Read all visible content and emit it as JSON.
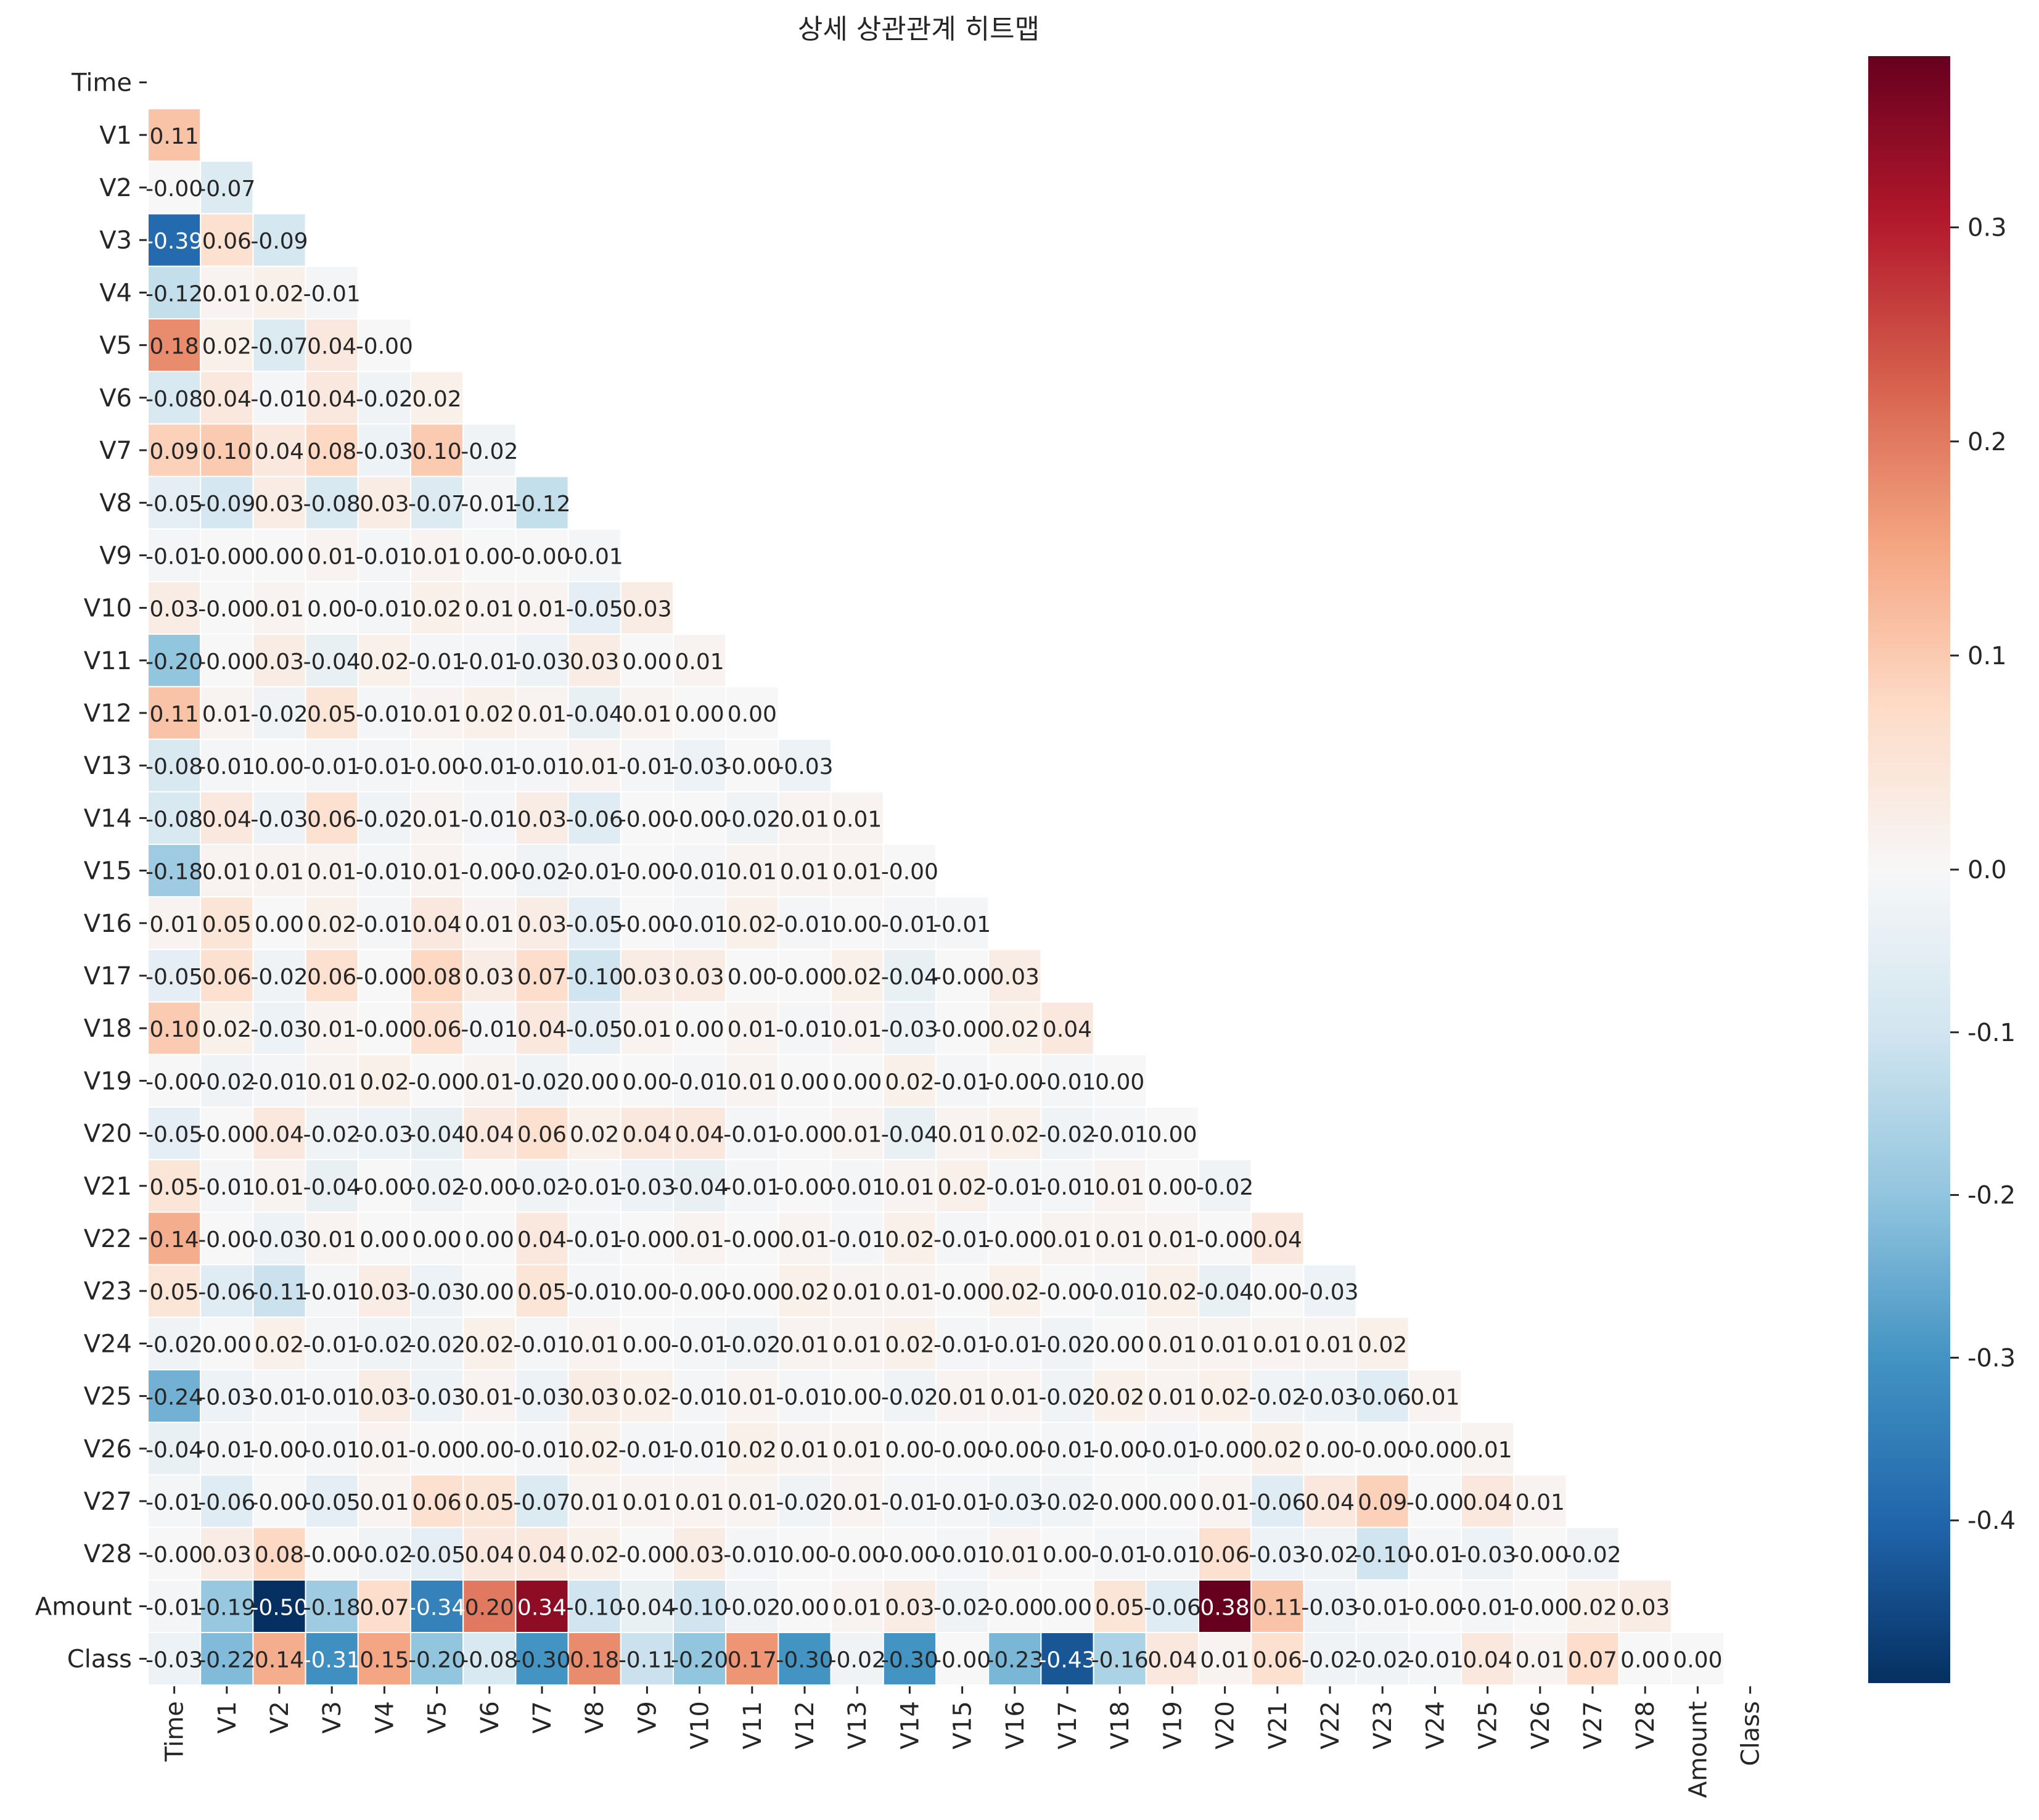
{
  "chart_data": {
    "type": "heatmap",
    "title": "상세 상관관계 히트맵",
    "xlabel": "",
    "ylabel": "",
    "labels": [
      "Time",
      "V1",
      "V2",
      "V3",
      "V4",
      "V5",
      "V6",
      "V7",
      "V8",
      "V9",
      "V10",
      "V11",
      "V12",
      "V13",
      "V14",
      "V15",
      "V16",
      "V17",
      "V18",
      "V19",
      "V20",
      "V21",
      "V22",
      "V23",
      "V24",
      "V25",
      "V26",
      "V27",
      "V28",
      "Amount",
      "Class"
    ],
    "mask": "upper-triangle-and-diagonal",
    "annotation_format": "0.00",
    "matrix_lower": [
      [],
      [
        0.11
      ],
      [
        -0.0,
        -0.07
      ],
      [
        -0.39,
        0.06,
        -0.09
      ],
      [
        -0.12,
        0.01,
        0.02,
        -0.01
      ],
      [
        0.18,
        0.02,
        -0.07,
        0.04,
        -0.0
      ],
      [
        -0.08,
        0.04,
        -0.01,
        0.04,
        -0.02,
        0.02
      ],
      [
        0.09,
        0.1,
        0.04,
        0.08,
        -0.03,
        0.1,
        -0.02
      ],
      [
        -0.05,
        -0.09,
        0.03,
        -0.08,
        0.03,
        -0.07,
        -0.01,
        -0.12
      ],
      [
        -0.01,
        -0.0,
        0.0,
        0.01,
        -0.01,
        0.01,
        0.0,
        -0.0,
        -0.01
      ],
      [
        0.03,
        -0.0,
        0.01,
        0.0,
        -0.01,
        0.02,
        0.01,
        0.01,
        -0.05,
        0.03
      ],
      [
        -0.2,
        -0.0,
        0.03,
        -0.04,
        0.02,
        -0.01,
        -0.01,
        -0.03,
        0.03,
        0.0,
        0.01
      ],
      [
        0.11,
        0.01,
        -0.02,
        0.05,
        -0.01,
        0.01,
        0.02,
        0.01,
        -0.04,
        0.01,
        0.0,
        0.0
      ],
      [
        -0.08,
        -0.01,
        0.0,
        -0.01,
        -0.01,
        -0.0,
        -0.01,
        -0.01,
        0.01,
        -0.01,
        -0.03,
        -0.0,
        -0.03
      ],
      [
        -0.08,
        0.04,
        -0.03,
        0.06,
        -0.02,
        0.01,
        -0.01,
        0.03,
        -0.06,
        -0.0,
        -0.0,
        -0.02,
        0.01,
        0.01
      ],
      [
        -0.18,
        0.01,
        0.01,
        0.01,
        -0.01,
        0.01,
        -0.0,
        -0.02,
        -0.01,
        -0.0,
        -0.01,
        0.01,
        0.01,
        0.01,
        -0.0
      ],
      [
        0.01,
        0.05,
        0.0,
        0.02,
        -0.01,
        0.04,
        0.01,
        0.03,
        -0.05,
        -0.0,
        -0.01,
        0.02,
        -0.01,
        0.0,
        -0.01,
        -0.01
      ],
      [
        -0.05,
        0.06,
        -0.02,
        0.06,
        -0.0,
        0.08,
        0.03,
        0.07,
        -0.1,
        0.03,
        0.03,
        0.0,
        -0.0,
        0.02,
        -0.04,
        -0.0,
        0.03
      ],
      [
        0.1,
        0.02,
        -0.03,
        0.01,
        -0.0,
        0.06,
        -0.01,
        0.04,
        -0.05,
        0.01,
        0.0,
        0.01,
        -0.01,
        0.01,
        -0.03,
        -0.0,
        0.02,
        0.04
      ],
      [
        -0.0,
        -0.02,
        -0.01,
        0.01,
        0.02,
        -0.0,
        0.01,
        -0.02,
        0.0,
        0.0,
        -0.01,
        0.01,
        0.0,
        0.0,
        0.02,
        -0.01,
        -0.0,
        -0.01,
        0.0
      ],
      [
        -0.05,
        -0.0,
        0.04,
        -0.02,
        -0.03,
        -0.04,
        0.04,
        0.06,
        0.02,
        0.04,
        0.04,
        -0.01,
        -0.0,
        0.01,
        -0.04,
        0.01,
        0.02,
        -0.02,
        -0.01,
        0.0
      ],
      [
        0.05,
        -0.01,
        0.01,
        -0.04,
        -0.0,
        -0.02,
        -0.0,
        -0.02,
        -0.01,
        -0.03,
        -0.04,
        -0.01,
        -0.0,
        -0.01,
        0.01,
        0.02,
        -0.01,
        -0.01,
        0.01,
        0.0,
        -0.02
      ],
      [
        0.14,
        -0.0,
        -0.03,
        0.01,
        0.0,
        0.0,
        0.0,
        0.04,
        -0.01,
        -0.0,
        0.01,
        -0.0,
        0.01,
        -0.01,
        0.02,
        -0.01,
        -0.0,
        0.01,
        0.01,
        0.01,
        -0.0,
        0.04
      ],
      [
        0.05,
        -0.06,
        -0.11,
        -0.01,
        0.03,
        -0.03,
        0.0,
        0.05,
        -0.01,
        0.0,
        -0.0,
        -0.0,
        0.02,
        0.01,
        0.01,
        -0.0,
        0.02,
        -0.0,
        -0.01,
        0.02,
        -0.04,
        0.0,
        -0.03
      ],
      [
        -0.02,
        0.0,
        0.02,
        -0.01,
        -0.02,
        -0.02,
        0.02,
        -0.01,
        0.01,
        0.0,
        -0.01,
        -0.02,
        0.01,
        0.01,
        0.02,
        -0.01,
        -0.01,
        -0.02,
        0.0,
        0.01,
        0.01,
        0.01,
        0.01,
        0.02
      ],
      [
        -0.24,
        -0.03,
        -0.01,
        -0.01,
        0.03,
        -0.03,
        0.01,
        -0.03,
        0.03,
        0.02,
        -0.01,
        0.01,
        -0.01,
        0.0,
        -0.02,
        0.01,
        0.01,
        -0.02,
        0.02,
        0.01,
        0.02,
        -0.02,
        -0.03,
        -0.06,
        0.01
      ],
      [
        -0.04,
        -0.01,
        -0.0,
        -0.01,
        0.01,
        -0.0,
        0.0,
        -0.01,
        0.02,
        -0.01,
        -0.01,
        0.02,
        0.01,
        0.01,
        0.0,
        -0.0,
        -0.0,
        -0.01,
        -0.0,
        -0.01,
        -0.0,
        0.02,
        0.0,
        -0.0,
        -0.0,
        0.01
      ],
      [
        -0.01,
        -0.06,
        -0.0,
        -0.05,
        0.01,
        0.06,
        0.05,
        -0.07,
        0.01,
        0.01,
        0.01,
        0.01,
        -0.02,
        0.01,
        -0.01,
        -0.01,
        -0.03,
        -0.02,
        -0.0,
        0.0,
        0.01,
        -0.06,
        0.04,
        0.09,
        -0.0,
        0.04,
        0.01
      ],
      [
        -0.0,
        0.03,
        0.08,
        -0.0,
        -0.02,
        -0.05,
        0.04,
        0.04,
        0.02,
        -0.0,
        0.03,
        -0.01,
        0.0,
        -0.0,
        -0.0,
        -0.01,
        0.01,
        0.0,
        -0.01,
        -0.01,
        0.06,
        -0.03,
        -0.02,
        -0.1,
        -0.01,
        -0.03,
        -0.0,
        -0.02
      ],
      [
        -0.01,
        -0.19,
        -0.5,
        -0.18,
        0.07,
        -0.34,
        0.2,
        0.34,
        -0.1,
        -0.04,
        -0.1,
        -0.02,
        0.0,
        0.01,
        0.03,
        -0.02,
        -0.0,
        0.0,
        0.05,
        -0.06,
        0.38,
        0.11,
        -0.03,
        -0.01,
        -0.0,
        -0.01,
        -0.0,
        0.02,
        0.03
      ],
      [
        -0.03,
        -0.22,
        0.14,
        -0.31,
        0.15,
        -0.2,
        -0.08,
        -0.3,
        0.18,
        -0.11,
        -0.2,
        0.17,
        -0.3,
        -0.02,
        -0.3,
        -0.0,
        -0.23,
        -0.43,
        -0.16,
        0.04,
        0.01,
        0.06,
        -0.02,
        -0.02,
        -0.01,
        0.04,
        0.01,
        0.07,
        0.0,
        0.0
      ]
    ],
    "vmin": -0.5,
    "vmax": 0.38,
    "colormap": "RdBu_r",
    "colorbar": {
      "position": "right",
      "ticks": [
        0.3,
        0.2,
        0.1,
        0.0,
        -0.1,
        -0.2,
        -0.3,
        -0.4
      ],
      "tick_labels": [
        "0.3",
        "0.2",
        "0.1",
        "0.0",
        "-0.1",
        "-0.2",
        "-0.3",
        "-0.4"
      ]
    },
    "grid": true,
    "legend": "none"
  }
}
